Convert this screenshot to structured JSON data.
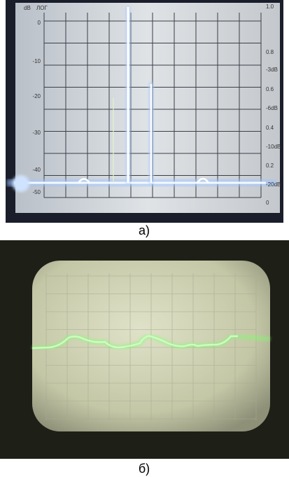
{
  "panel_a": {
    "caption": "а)",
    "header": [
      "dB",
      "ЛОГ"
    ],
    "left_scale": [
      "0",
      "-10",
      "-20",
      "-30",
      "-40",
      "-50"
    ],
    "right_scale": [
      "1.0",
      "0.8",
      "-3dB",
      "0.6",
      "-6dB",
      "0.4",
      "-10dB",
      "0.2",
      "-20dB",
      "0"
    ]
  },
  "panel_b": {
    "caption": "б)"
  }
}
